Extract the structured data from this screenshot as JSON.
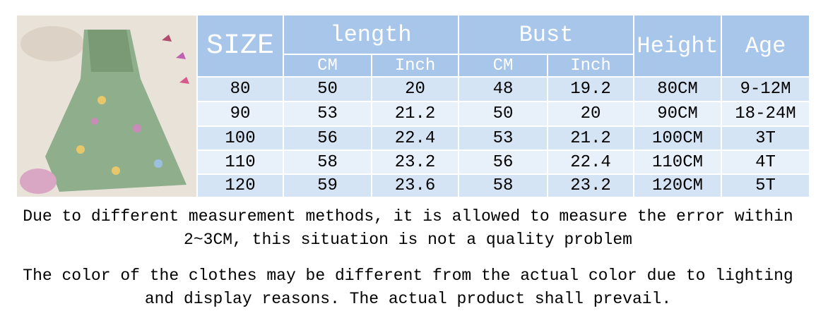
{
  "table": {
    "header": {
      "size": "SIZE",
      "length": "length",
      "bust": "Bust",
      "height": "Height",
      "age": "Age",
      "units": [
        "CM",
        "Inch",
        "CM",
        "Inch"
      ]
    },
    "rows": [
      [
        "80",
        "50",
        "20",
        "48",
        "19.2",
        "80CM",
        "9-12M"
      ],
      [
        "90",
        "53",
        "21.2",
        "50",
        "20",
        "90CM",
        "18-24M"
      ],
      [
        "100",
        "56",
        "22.4",
        "53",
        "21.2",
        "100CM",
        "3T"
      ],
      [
        "110",
        "58",
        "23.2",
        "56",
        "22.4",
        "110CM",
        "4T"
      ],
      [
        "120",
        "59",
        "23.6",
        "58",
        "23.2",
        "120CM",
        "5T"
      ]
    ]
  },
  "notes": [
    {
      "lines": [
        "Due to different measurement methods, it is allowed to measure the error within",
        "2~3CM, this situation is not a quality problem"
      ]
    },
    {
      "lines": [
        "The color of the clothes may be different from the actual color due to lighting",
        "and display reasons. The actual product shall prevail."
      ]
    }
  ]
}
